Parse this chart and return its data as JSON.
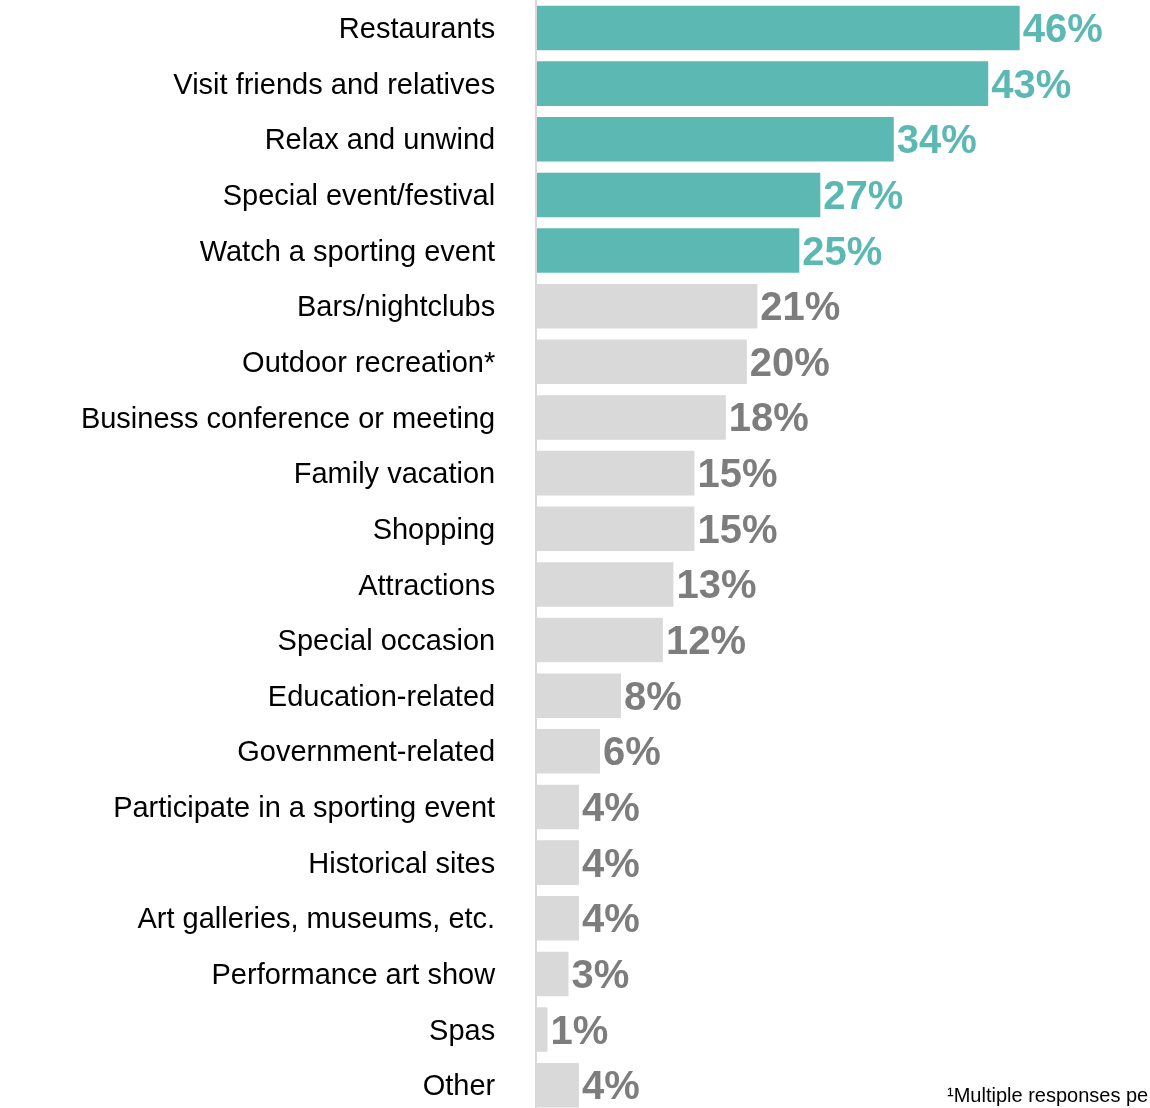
{
  "chart_data": {
    "type": "bar",
    "orientation": "horizontal",
    "categories": [
      "Restaurants",
      "Visit friends and relatives",
      "Relax and unwind",
      "Special event/festival",
      "Watch a sporting event",
      "Bars/nightclubs",
      "Outdoor recreation*",
      "Business conference or meeting",
      "Family vacation",
      "Shopping",
      "Attractions",
      "Special occasion",
      "Education-related",
      "Government-related",
      "Participate in a sporting event",
      "Historical sites",
      "Art galleries, museums, etc.",
      "Performance art show",
      "Spas",
      "Other"
    ],
    "values": [
      46,
      43,
      34,
      27,
      25,
      21,
      20,
      18,
      15,
      15,
      13,
      12,
      8,
      6,
      4,
      4,
      4,
      3,
      1,
      4
    ],
    "value_labels": [
      "46%",
      "43%",
      "34%",
      "27%",
      "25%",
      "21%",
      "20%",
      "18%",
      "15%",
      "15%",
      "13%",
      "12%",
      "8%",
      "6%",
      "4%",
      "4%",
      "4%",
      "3%",
      "1%",
      "4%"
    ],
    "colors": [
      "#5cb8b2",
      "#5cb8b2",
      "#5cb8b2",
      "#5cb8b2",
      "#5cb8b2",
      "#d9d9d9",
      "#d9d9d9",
      "#d9d9d9",
      "#d9d9d9",
      "#d9d9d9",
      "#d9d9d9",
      "#d9d9d9",
      "#d9d9d9",
      "#d9d9d9",
      "#d9d9d9",
      "#d9d9d9",
      "#d9d9d9",
      "#d9d9d9",
      "#d9d9d9",
      "#d9d9d9"
    ],
    "annotations": [
      "¹Multiple responses pe"
    ]
  }
}
